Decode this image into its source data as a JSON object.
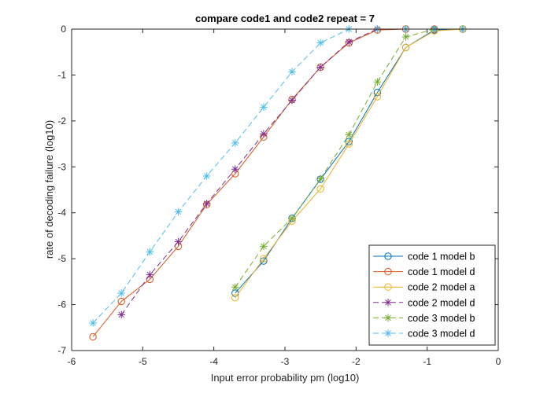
{
  "chart_data": {
    "type": "line",
    "title": "compare code1 and code2 repeat = 7",
    "xlabel": "Input error probability pm (log10)",
    "ylabel": "rate of decoding failure (log10)",
    "xlim": [
      -6,
      0
    ],
    "ylim": [
      -7,
      0
    ],
    "xticks": [
      -6,
      -5,
      -4,
      -3,
      -2,
      -1,
      0
    ],
    "yticks": [
      -7,
      -6,
      -5,
      -4,
      -3,
      -2,
      -1,
      0
    ],
    "xtick_labels": [
      "-6",
      "-5",
      "-4",
      "-3",
      "-2",
      "-1",
      "0"
    ],
    "ytick_labels": [
      "-7",
      "-6",
      "-5",
      "-4",
      "-3",
      "-2",
      "-1",
      "0"
    ],
    "grid": false,
    "legend_position": "bottom-right",
    "series": [
      {
        "name": "code 1 model b",
        "color": "#0072BD",
        "marker": "circle",
        "line_style": "solid",
        "x": [
          -3.7,
          -3.3,
          -2.9,
          -2.5,
          -2.1,
          -1.7,
          -1.3,
          -0.9,
          -0.5
        ],
        "y": [
          -5.75,
          -5.05,
          -4.12,
          -3.27,
          -2.45,
          -1.38,
          -0.4,
          -0.02,
          0.0
        ]
      },
      {
        "name": "code 1 model d",
        "color": "#D95319",
        "marker": "circle",
        "line_style": "solid",
        "x": [
          -5.7,
          -5.3,
          -4.9,
          -4.5,
          -4.1,
          -3.7,
          -3.3,
          -2.9,
          -2.5,
          -2.1,
          -1.7,
          -1.3,
          -0.9,
          -0.5
        ],
        "y": [
          -6.7,
          -5.93,
          -5.45,
          -4.73,
          -3.82,
          -3.15,
          -2.35,
          -1.53,
          -0.83,
          -0.3,
          -0.02,
          0.0,
          0.0,
          0.0
        ]
      },
      {
        "name": "code 2 model a",
        "color": "#EDB120",
        "marker": "circle",
        "line_style": "solid",
        "x": [
          -3.7,
          -3.3,
          -2.9,
          -2.5,
          -2.1,
          -1.7,
          -1.3,
          -0.9,
          -0.5
        ],
        "y": [
          -5.85,
          -5.0,
          -4.18,
          -3.48,
          -2.5,
          -1.47,
          -0.4,
          -0.04,
          0.0
        ]
      },
      {
        "name": "code 2 model d",
        "color": "#7E2F8E",
        "marker": "star",
        "line_style": "dashed",
        "x": [
          -5.3,
          -4.9,
          -4.5,
          -4.1,
          -3.7,
          -3.3,
          -2.9,
          -2.5,
          -2.1,
          -1.7,
          -1.3,
          -0.9,
          -0.5
        ],
        "y": [
          -6.22,
          -5.35,
          -4.63,
          -3.8,
          -3.05,
          -2.28,
          -1.55,
          -0.83,
          -0.28,
          0.0,
          0.0,
          0.0,
          0.0
        ]
      },
      {
        "name": "code 3 model b",
        "color": "#77AC30",
        "marker": "star",
        "line_style": "dashed",
        "x": [
          -3.7,
          -3.3,
          -2.9,
          -2.5,
          -2.1,
          -1.7,
          -1.3,
          -0.9,
          -0.5
        ],
        "y": [
          -5.62,
          -4.73,
          -4.12,
          -3.26,
          -2.3,
          -1.15,
          -0.17,
          0.0,
          0.0
        ]
      },
      {
        "name": "code 3 model d",
        "color": "#4DBEEE",
        "marker": "star",
        "line_style": "dashed",
        "x": [
          -5.7,
          -5.3,
          -4.9,
          -4.5,
          -4.1,
          -3.7,
          -3.3,
          -2.9,
          -2.5,
          -2.1,
          -1.7,
          -1.3,
          -0.9,
          -0.5
        ],
        "y": [
          -6.4,
          -5.75,
          -4.85,
          -3.98,
          -3.2,
          -2.48,
          -1.7,
          -0.93,
          -0.3,
          0.0,
          0.0,
          0.0,
          0.0,
          0.0
        ]
      }
    ]
  }
}
